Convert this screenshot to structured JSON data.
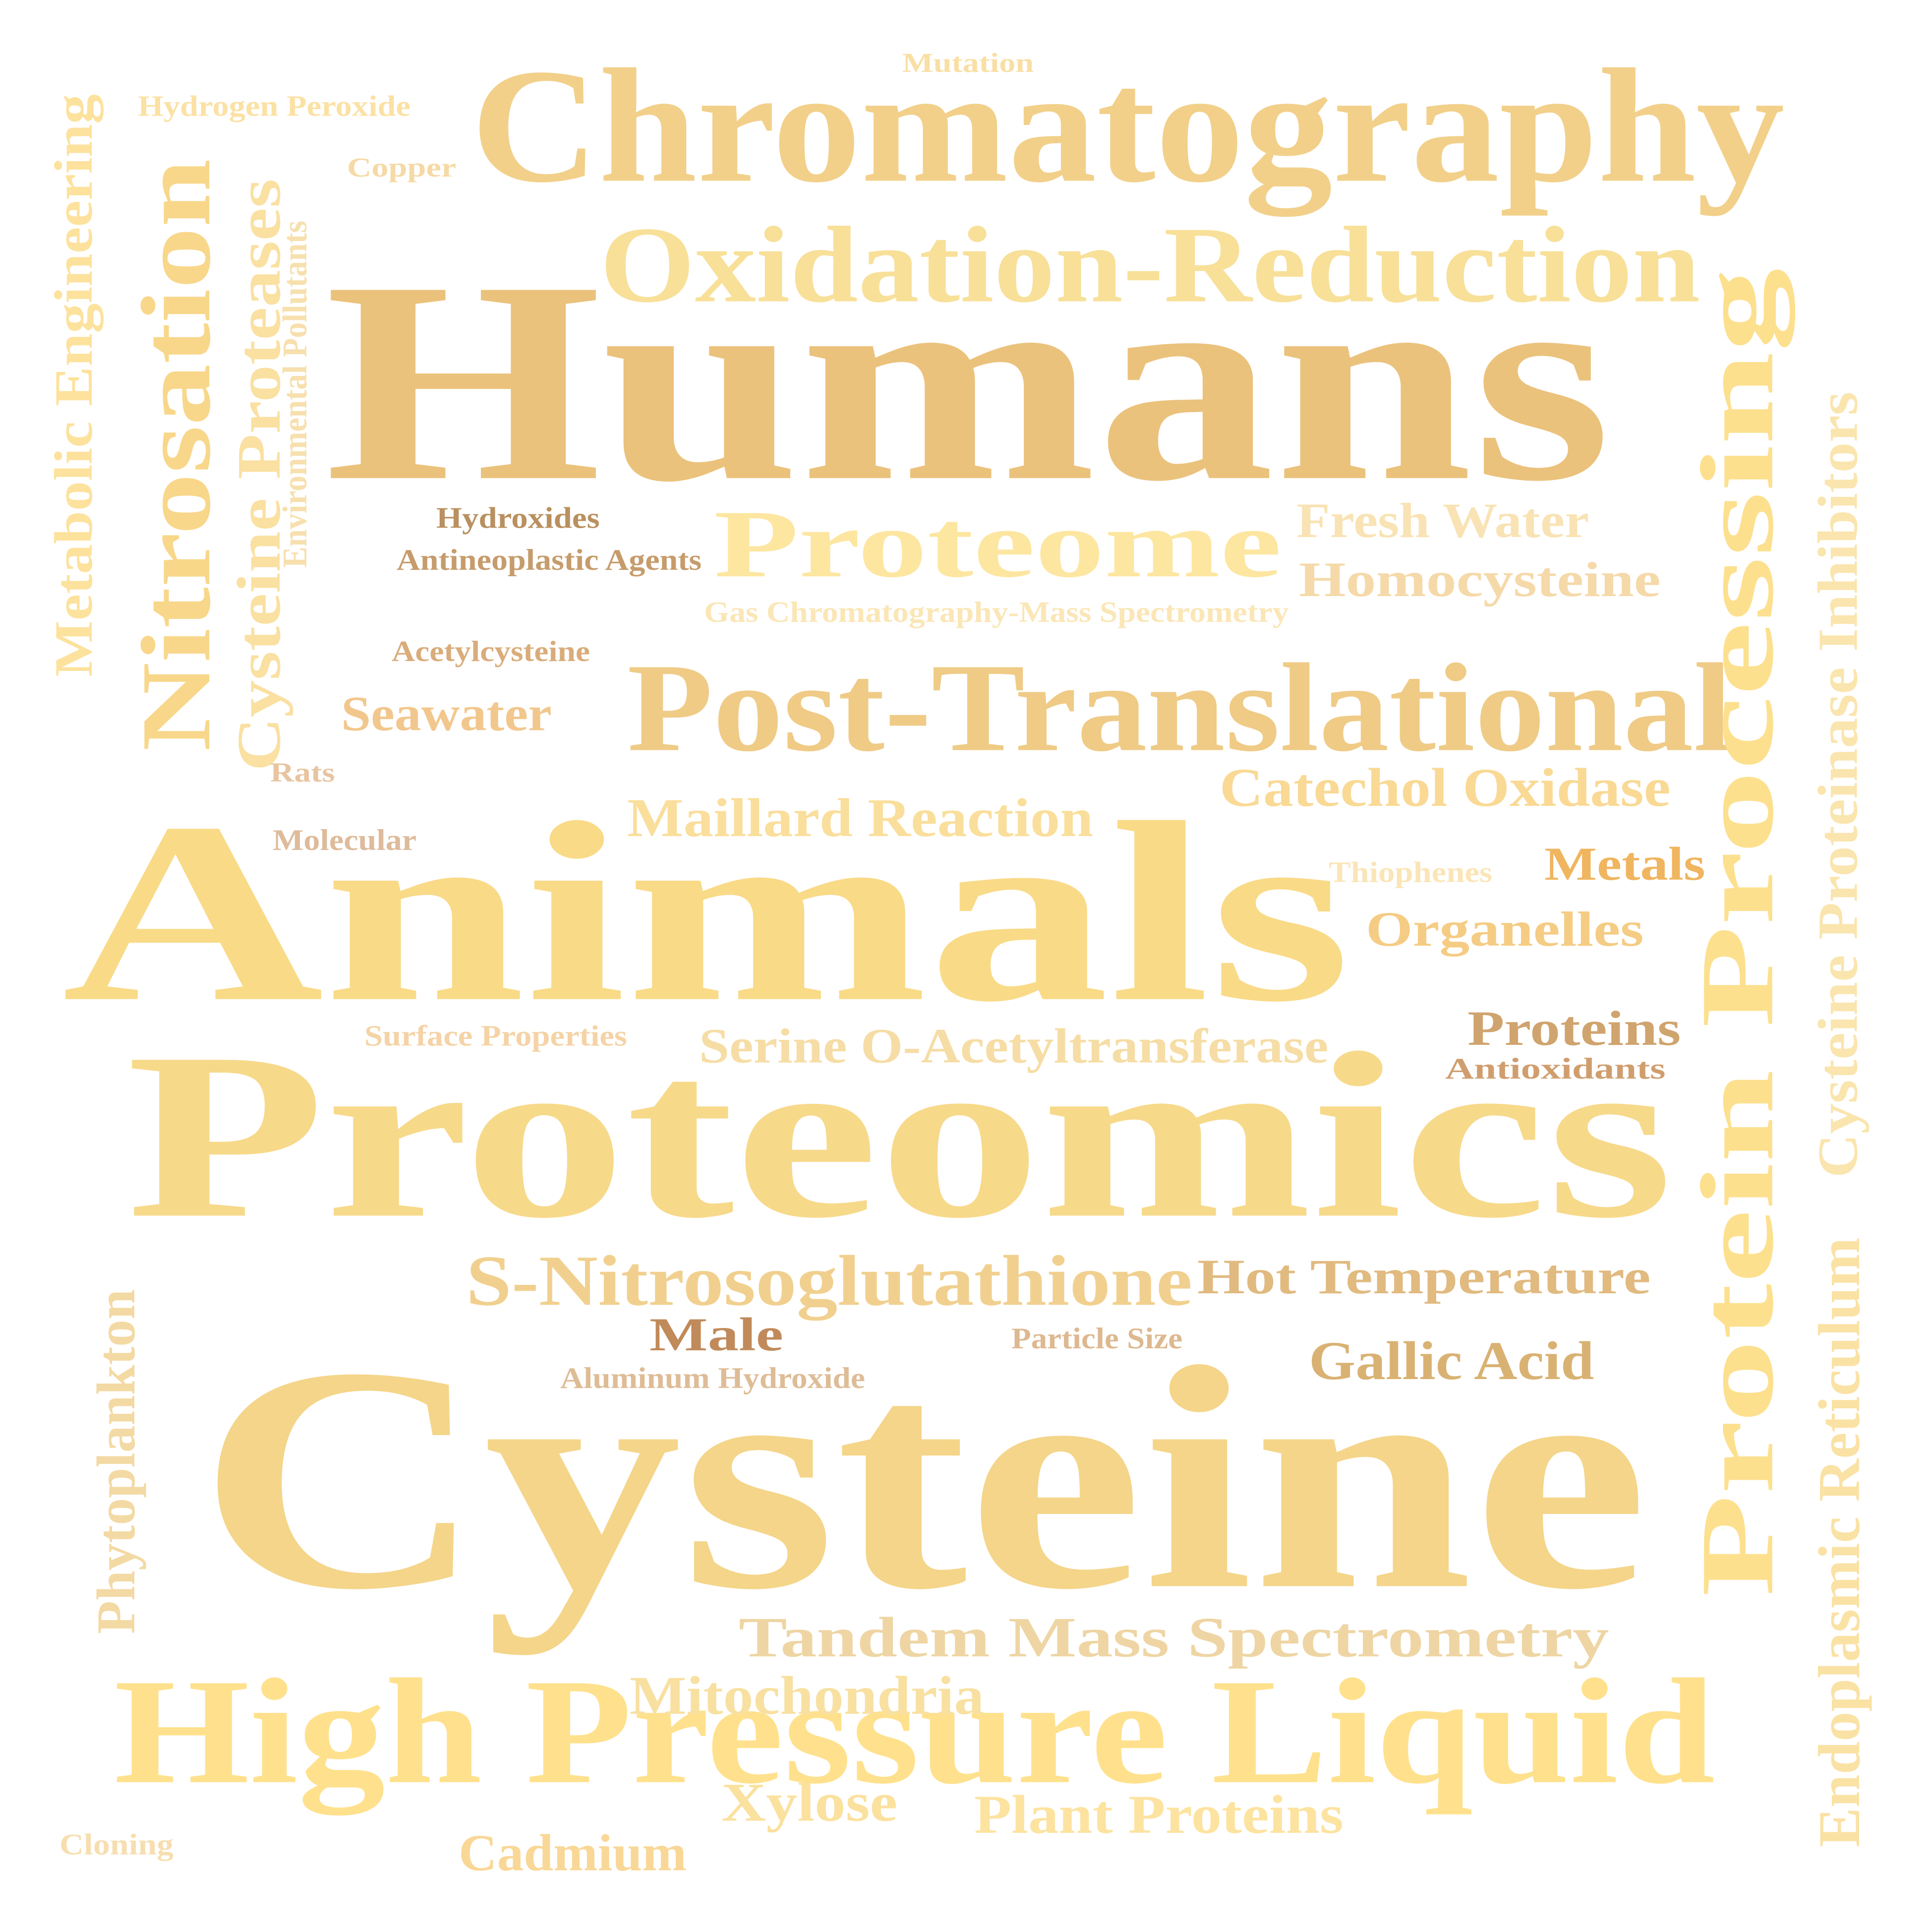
{
  "words": [
    {
      "text": "Humans",
      "color": "#EBC27C"
    },
    {
      "text": "Animals",
      "color": "#F9DA87"
    },
    {
      "text": "Proteomics",
      "color": "#F7D98A"
    },
    {
      "text": "Cysteine",
      "color": "#F4D589"
    },
    {
      "text": "Chromatography",
      "color": "#F2D08A"
    },
    {
      "text": "Oxidation-Reduction",
      "color": "#F8E099"
    },
    {
      "text": "Post-Translational",
      "color": "#EFCB86"
    },
    {
      "text": "High Pressure Liquid",
      "color": "#FFE18D"
    },
    {
      "text": "Protein Processing",
      "color": "#FDE08E"
    },
    {
      "text": "Nitrosation",
      "color": "#F8D78A"
    },
    {
      "text": "Proteome",
      "color": "#FDE6A0"
    },
    {
      "text": "Metabolic Engineering",
      "color": "#FDE29D"
    },
    {
      "text": "Cysteine Proteases",
      "color": "#FAE0A1"
    },
    {
      "text": "Environmental Pollutants",
      "color": "#F7E0AE"
    },
    {
      "text": "Cysteine Proteinase Inhibitors",
      "color": "#FAE5AE"
    },
    {
      "text": "Endoplasmic Reticulum",
      "color": "#FAE2A5"
    },
    {
      "text": "Phytoplankton",
      "color": "#F3D9A3"
    },
    {
      "text": "Mutation",
      "color": "#F9DFA4"
    },
    {
      "text": "Hydrogen Peroxide",
      "color": "#FBE1A4"
    },
    {
      "text": "Copper",
      "color": "#F6D9A5"
    },
    {
      "text": "Hydroxides",
      "color": "#B9905F"
    },
    {
      "text": "Antineoplastic Agents",
      "color": "#C69C6C"
    },
    {
      "text": "Fresh Water",
      "color": "#F9E3B4"
    },
    {
      "text": "Homocysteine",
      "color": "#F5D9A9"
    },
    {
      "text": "Gas Chromatography-Mass Spectrometry",
      "color": "#FBE6B6"
    },
    {
      "text": "Acetylcysteine",
      "color": "#D9AC7A"
    },
    {
      "text": "Seawater",
      "color": "#F2C78D"
    },
    {
      "text": "Rats",
      "color": "#E8C4A1"
    },
    {
      "text": "Catechol Oxidase",
      "color": "#F9D994"
    },
    {
      "text": "Molecular",
      "color": "#DDBB9B"
    },
    {
      "text": "Maillard Reaction",
      "color": "#FADE9B"
    },
    {
      "text": "Thiophenes",
      "color": "#FBE5B7"
    },
    {
      "text": "Metals",
      "color": "#F0B55F"
    },
    {
      "text": "Organelles",
      "color": "#F5CC83"
    },
    {
      "text": "Surface Properties",
      "color": "#F5D3A6"
    },
    {
      "text": "Serine O-Acetyltransferase",
      "color": "#F6DDA5"
    },
    {
      "text": "Proteins",
      "color": "#D0A46E"
    },
    {
      "text": "Antioxidants",
      "color": "#D09E6E"
    },
    {
      "text": "S-Nitrosoglutathione",
      "color": "#F1D08F"
    },
    {
      "text": "Hot Temperature",
      "color": "#E1BA80"
    },
    {
      "text": "Male",
      "color": "#C18A5A"
    },
    {
      "text": "Particle Size",
      "color": "#DDB890"
    },
    {
      "text": "Aluminum Hydroxide",
      "color": "#DEBC96"
    },
    {
      "text": "Gallic Acid",
      "color": "#D9B273"
    },
    {
      "text": "Tandem Mass Spectrometry",
      "color": "#EED5A3"
    },
    {
      "text": "Mitochondria",
      "color": "#F8E0A1"
    },
    {
      "text": "Cloning",
      "color": "#F7DEB0"
    },
    {
      "text": "Cadmium",
      "color": "#F9D796"
    },
    {
      "text": "Xylose",
      "color": "#FAE19E"
    },
    {
      "text": "Plant Proteins",
      "color": "#FDE3A0"
    }
  ]
}
